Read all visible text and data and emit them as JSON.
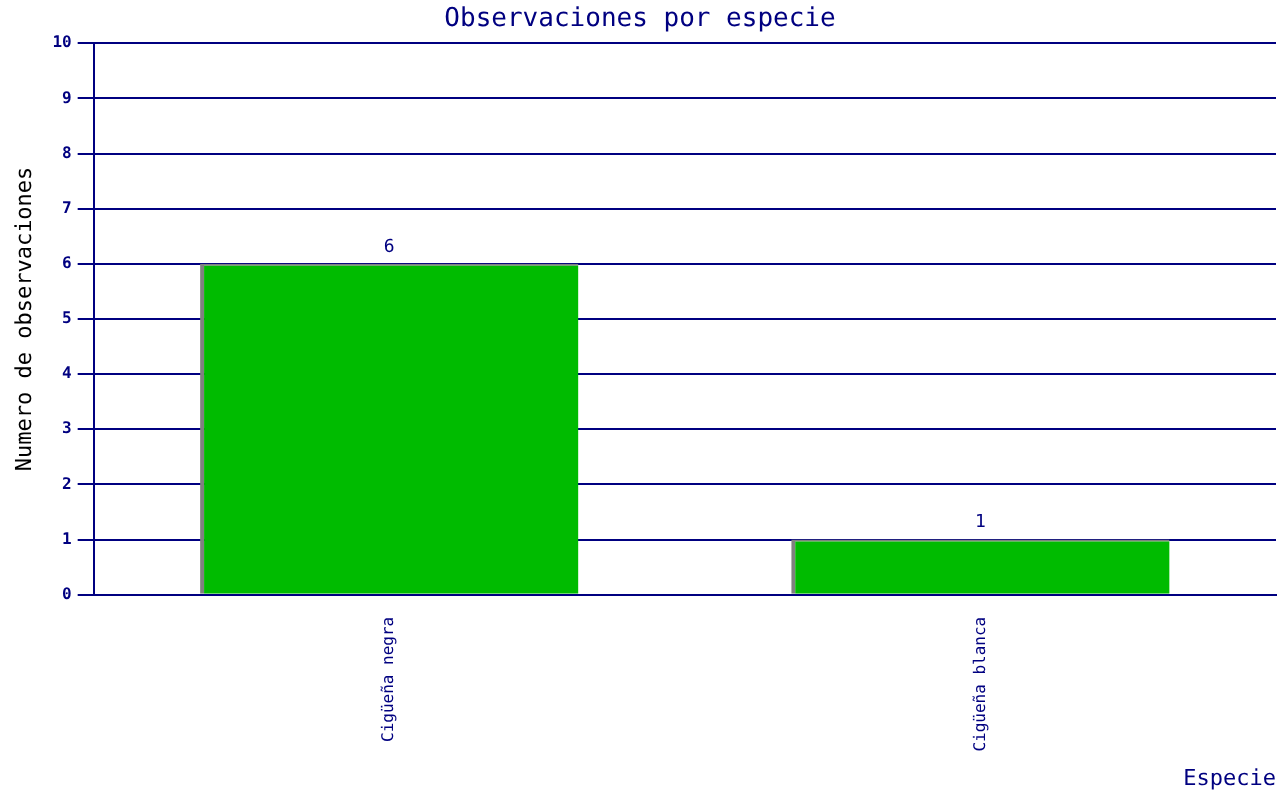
{
  "chart_data": {
    "type": "bar",
    "title": "Observaciones por especie",
    "xlabel": "Especie",
    "ylabel": "Numero de observaciones",
    "categories": [
      "Cigüeña negra",
      "Cigüeña blanca"
    ],
    "values": [
      6,
      1
    ],
    "color": "#00bb00",
    "ylim": [
      0,
      10
    ],
    "yticks": [
      0,
      1,
      2,
      3,
      4,
      5,
      6,
      7,
      8,
      9,
      10
    ],
    "grid": "y",
    "data_labels": true,
    "legend": false
  }
}
